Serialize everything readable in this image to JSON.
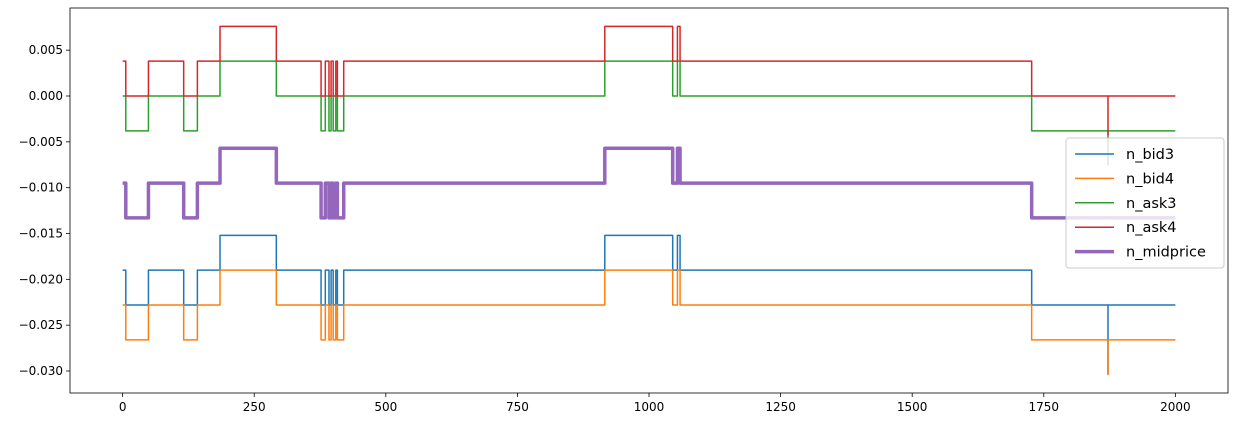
{
  "chart_data": {
    "type": "line",
    "title": "",
    "xlabel": "",
    "ylabel": "",
    "xlim": [
      -100,
      2100
    ],
    "ylim": [
      -0.0324,
      0.0096
    ],
    "xticks": [
      0,
      250,
      500,
      750,
      1000,
      1250,
      1500,
      1750,
      2000
    ],
    "xtick_labels": [
      "0",
      "250",
      "500",
      "750",
      "1000",
      "1250",
      "1500",
      "1750",
      "2000"
    ],
    "yticks": [
      -0.03,
      -0.025,
      -0.02,
      -0.015,
      -0.01,
      -0.005,
      0.0,
      0.005
    ],
    "ytick_labels": [
      "−0.030",
      "−0.025",
      "−0.020",
      "−0.015",
      "−0.010",
      "−0.005",
      "0.000",
      "0.005"
    ],
    "grid": false,
    "legend_position": "center-right",
    "series": [
      {
        "name": "n_bid3",
        "color": "#1f77b4",
        "width": 1.5,
        "base": -0.019,
        "levels": [
          -0.0228,
          -0.019,
          -0.0152
        ],
        "segments": [
          [
            0,
            0,
            1
          ],
          [
            6,
            0,
            0
          ],
          [
            49,
            0,
            1
          ],
          [
            116,
            0,
            0
          ],
          [
            142,
            0,
            1
          ],
          [
            185,
            0,
            2
          ],
          [
            292,
            0,
            1
          ],
          [
            377,
            0,
            0
          ],
          [
            385,
            0,
            1
          ],
          [
            392,
            0,
            0
          ],
          [
            396,
            0,
            1
          ],
          [
            400,
            0,
            0
          ],
          [
            405,
            0,
            1
          ],
          [
            408,
            0,
            0
          ],
          [
            420,
            0,
            1
          ],
          [
            916,
            0,
            2
          ],
          [
            1045,
            0,
            1
          ],
          [
            1054,
            0,
            2
          ],
          [
            1059,
            0,
            1
          ],
          [
            1727,
            0,
            0
          ],
          [
            1872,
            -0.0303,
            0
          ],
          [
            1877,
            0,
            0
          ],
          [
            2000,
            0,
            0
          ]
        ]
      },
      {
        "name": "n_bid4",
        "color": "#ff7f0e",
        "width": 1.5,
        "levels": [
          -0.0266,
          -0.0228,
          -0.019
        ],
        "segments": [
          [
            0,
            0,
            1
          ],
          [
            6,
            0,
            0
          ],
          [
            49,
            0,
            1
          ],
          [
            116,
            0,
            0
          ],
          [
            142,
            0,
            1
          ],
          [
            185,
            0,
            2
          ],
          [
            292,
            0,
            1
          ],
          [
            377,
            0,
            0
          ],
          [
            385,
            0,
            1
          ],
          [
            392,
            0,
            0
          ],
          [
            396,
            0,
            1
          ],
          [
            400,
            0,
            0
          ],
          [
            405,
            0,
            1
          ],
          [
            408,
            0,
            0
          ],
          [
            420,
            0,
            1
          ],
          [
            916,
            0,
            2
          ],
          [
            1045,
            0,
            1
          ],
          [
            1054,
            0,
            2
          ],
          [
            1059,
            0,
            1
          ],
          [
            1727,
            0,
            0
          ],
          [
            1872,
            -0.0304,
            0
          ],
          [
            1877,
            0,
            0
          ],
          [
            2000,
            0,
            0
          ]
        ]
      },
      {
        "name": "n_ask3",
        "color": "#2ca02c",
        "width": 1.5,
        "levels": [
          -0.0038,
          0.0,
          0.0038
        ],
        "segments": [
          [
            0,
            0,
            1
          ],
          [
            6,
            0,
            0
          ],
          [
            49,
            0,
            1
          ],
          [
            116,
            0,
            0
          ],
          [
            142,
            0,
            1
          ],
          [
            185,
            0,
            2
          ],
          [
            292,
            0,
            1
          ],
          [
            377,
            0,
            0
          ],
          [
            385,
            0,
            1
          ],
          [
            392,
            0,
            0
          ],
          [
            396,
            0,
            1
          ],
          [
            400,
            0,
            0
          ],
          [
            405,
            0,
            1
          ],
          [
            408,
            0,
            0
          ],
          [
            420,
            0,
            1
          ],
          [
            916,
            0,
            2
          ],
          [
            1045,
            0,
            1
          ],
          [
            1054,
            0,
            2
          ],
          [
            1059,
            0,
            1
          ],
          [
            1727,
            0,
            0
          ],
          [
            1872,
            -0.0075,
            0
          ],
          [
            1877,
            0,
            0
          ],
          [
            2000,
            0,
            0
          ]
        ]
      },
      {
        "name": "n_ask4",
        "color": "#d62728",
        "width": 1.5,
        "levels": [
          0.0,
          0.0038,
          0.0076
        ],
        "segments": [
          [
            0,
            0,
            1
          ],
          [
            6,
            0,
            0
          ],
          [
            49,
            0,
            1
          ],
          [
            116,
            0,
            0
          ],
          [
            142,
            0,
            1
          ],
          [
            185,
            0,
            2
          ],
          [
            292,
            0,
            1
          ],
          [
            377,
            0,
            0
          ],
          [
            385,
            0,
            1
          ],
          [
            392,
            0,
            0
          ],
          [
            396,
            0,
            1
          ],
          [
            400,
            0,
            0
          ],
          [
            405,
            0,
            1
          ],
          [
            408,
            0,
            0
          ],
          [
            420,
            0,
            1
          ],
          [
            916,
            0,
            2
          ],
          [
            1045,
            0,
            1
          ],
          [
            1054,
            0,
            2
          ],
          [
            1059,
            0,
            1
          ],
          [
            1727,
            0,
            0
          ],
          [
            1872,
            -0.0042,
            0
          ],
          [
            1877,
            0,
            0
          ],
          [
            2000,
            0,
            0
          ]
        ]
      },
      {
        "name": "n_midprice",
        "color": "#9467bd",
        "width": 3.5,
        "levels": [
          -0.0133,
          -0.0095,
          -0.0057
        ],
        "segments": [
          [
            0,
            0,
            1
          ],
          [
            6,
            0,
            0
          ],
          [
            49,
            0,
            1
          ],
          [
            116,
            0,
            0
          ],
          [
            142,
            0,
            1
          ],
          [
            185,
            0,
            2
          ],
          [
            292,
            0,
            1
          ],
          [
            377,
            0,
            0
          ],
          [
            385,
            0,
            1
          ],
          [
            392,
            0,
            0
          ],
          [
            396,
            0,
            1
          ],
          [
            400,
            0,
            0
          ],
          [
            405,
            0,
            1
          ],
          [
            408,
            0,
            0
          ],
          [
            420,
            0,
            1
          ],
          [
            916,
            0,
            2
          ],
          [
            1045,
            0,
            1
          ],
          [
            1054,
            0,
            2
          ],
          [
            1059,
            0,
            1
          ],
          [
            1727,
            0,
            0
          ],
          [
            2000,
            0,
            0
          ]
        ]
      }
    ]
  }
}
